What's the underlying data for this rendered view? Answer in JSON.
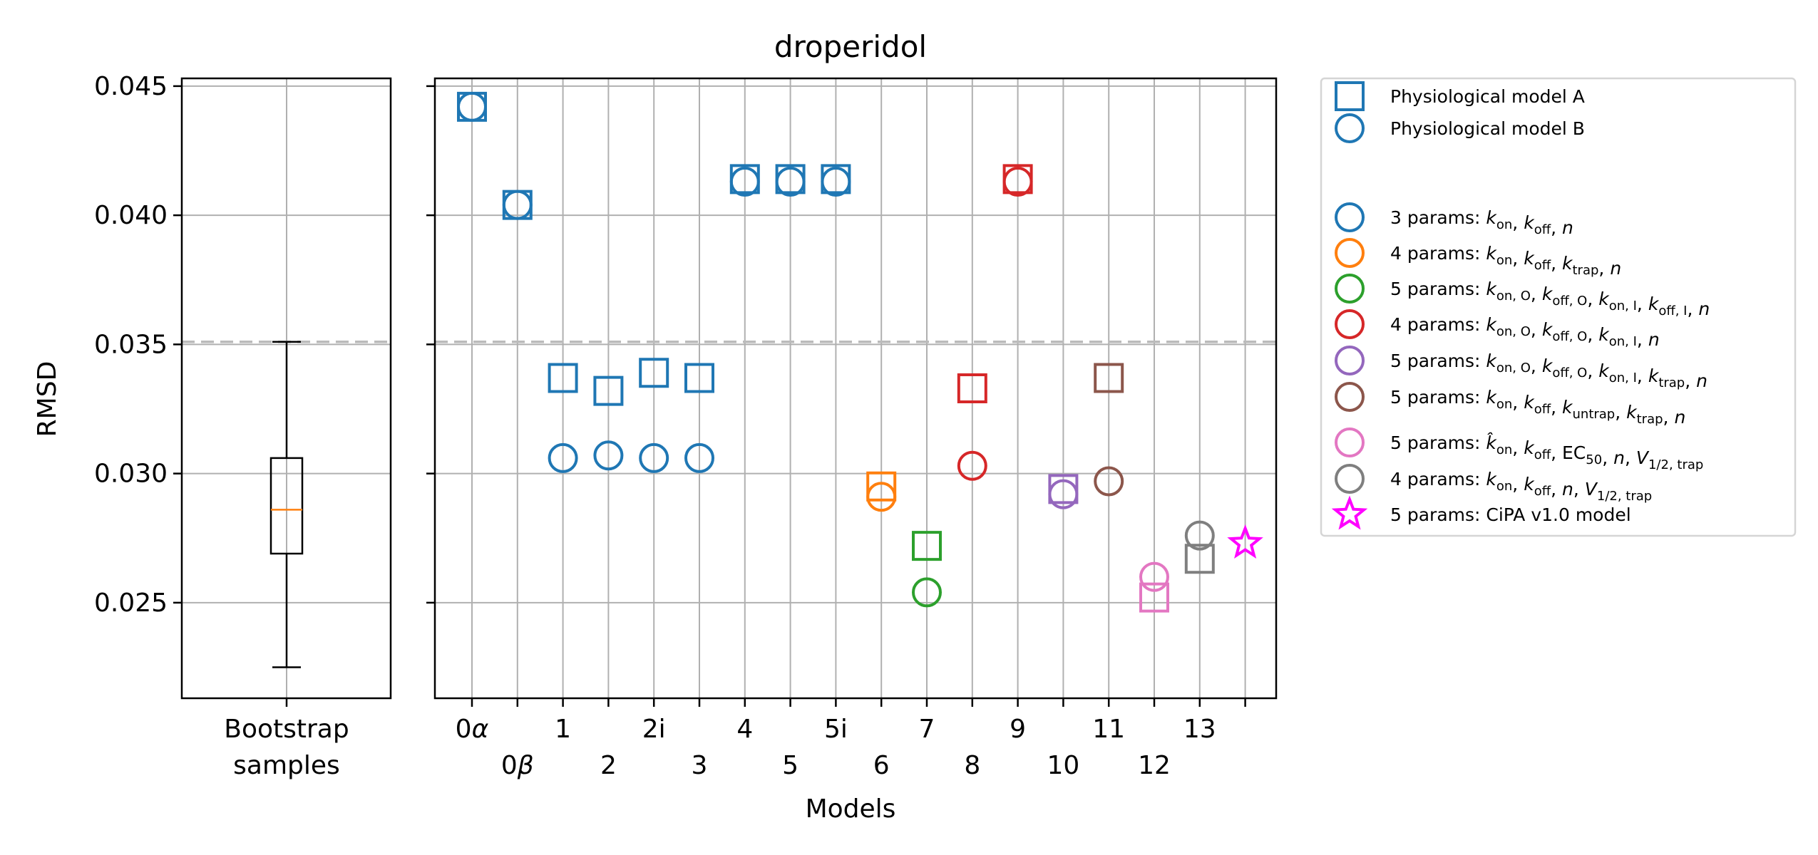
{
  "chart_data": {
    "title": "droperidol",
    "type": "scatter",
    "ylabel": "RMSD",
    "xlabel": "Models",
    "ylim": [
      0.0213,
      0.0453
    ],
    "yticks": [
      0.025,
      0.03,
      0.035,
      0.04,
      0.045
    ],
    "ytick_labels": [
      "0.025",
      "0.030",
      "0.035",
      "0.040",
      "0.045"
    ],
    "threshold": 0.0351,
    "grid": true,
    "legend_placement": "outside right",
    "bootstrap": {
      "label_line1": "Bootstrap",
      "label_line2": "samples",
      "whisker_low": 0.0225,
      "q1": 0.0269,
      "median": 0.0286,
      "q3": 0.0306,
      "whisker_high": 0.0351
    },
    "categories": [
      "0α",
      "0β",
      "1",
      "2",
      "2i",
      "3",
      "4",
      "5",
      "5i",
      "6",
      "7",
      "8",
      "9",
      "10",
      "11",
      "12",
      "13",
      "14"
    ],
    "tick_labels": [
      {
        "main": "0",
        "italic": "α",
        "row": 0
      },
      {
        "main": "0",
        "italic": "β",
        "row": 1
      },
      {
        "main": "1",
        "italic": "",
        "row": 0
      },
      {
        "main": "2",
        "italic": "",
        "row": 1
      },
      {
        "main": "2i",
        "italic": "",
        "row": 0
      },
      {
        "main": "3",
        "italic": "",
        "row": 1
      },
      {
        "main": "4",
        "italic": "",
        "row": 0
      },
      {
        "main": "5",
        "italic": "",
        "row": 1
      },
      {
        "main": "5i",
        "italic": "",
        "row": 0
      },
      {
        "main": "6",
        "italic": "",
        "row": 1
      },
      {
        "main": "7",
        "italic": "",
        "row": 0
      },
      {
        "main": "8",
        "italic": "",
        "row": 1
      },
      {
        "main": "9",
        "italic": "",
        "row": 0
      },
      {
        "main": "10",
        "italic": "",
        "row": 1
      },
      {
        "main": "11",
        "italic": "",
        "row": 0
      },
      {
        "main": "12",
        "italic": "",
        "row": 1
      },
      {
        "main": "13",
        "italic": "",
        "row": 0
      },
      {
        "main": "",
        "italic": "",
        "row": 1
      }
    ],
    "colors": {
      "blue": "#1f77b4",
      "orange": "#ff7f0e",
      "green": "#2ca02c",
      "red": "#d62728",
      "purple": "#9467bd",
      "brown": "#8c564b",
      "pink": "#e377c2",
      "gray": "#7f7f7f",
      "magenta": "#ff00ff",
      "median": "#ff7f0e",
      "threshold": "#bbbbbb"
    },
    "points": [
      {
        "x": "0α",
        "model_a": 0.0442,
        "model_b": 0.0442,
        "color": "blue"
      },
      {
        "x": "0β",
        "model_a": 0.0404,
        "model_b": 0.0404,
        "color": "blue"
      },
      {
        "x": "1",
        "model_a": 0.0337,
        "model_b": 0.0306,
        "color": "blue"
      },
      {
        "x": "2",
        "model_a": 0.0332,
        "model_b": 0.0307,
        "color": "blue"
      },
      {
        "x": "2i",
        "model_a": 0.0339,
        "model_b": 0.0306,
        "color": "blue"
      },
      {
        "x": "3",
        "model_a": 0.0337,
        "model_b": 0.0306,
        "color": "blue"
      },
      {
        "x": "4",
        "model_a": 0.0414,
        "model_b": 0.0413,
        "color": "blue"
      },
      {
        "x": "5",
        "model_a": 0.0414,
        "model_b": 0.0413,
        "color": "blue"
      },
      {
        "x": "5i",
        "model_a": 0.0414,
        "model_b": 0.0413,
        "color": "blue"
      },
      {
        "x": "6",
        "model_a": 0.0295,
        "model_b": 0.0291,
        "color": "orange"
      },
      {
        "x": "7",
        "model_a": 0.0272,
        "model_b": 0.0254,
        "color": "green"
      },
      {
        "x": "8",
        "model_a": 0.0333,
        "model_b": 0.0303,
        "color": "red"
      },
      {
        "x": "9",
        "model_a": 0.0414,
        "model_b": 0.0413,
        "color": "red"
      },
      {
        "x": "10",
        "model_a": 0.0294,
        "model_b": 0.0292,
        "color": "purple"
      },
      {
        "x": "11",
        "model_a": 0.0337,
        "model_b": 0.0297,
        "color": "brown"
      },
      {
        "x": "12",
        "model_a": 0.0252,
        "model_b": 0.026,
        "color": "pink"
      },
      {
        "x": "13",
        "model_a": 0.0267,
        "model_b": 0.0276,
        "color": "gray"
      },
      {
        "x": "14",
        "cipa": 0.0273,
        "color": "magenta"
      }
    ],
    "legend": [
      {
        "marker": "square",
        "color": "blue",
        "text": "Physiological model A"
      },
      {
        "marker": "circle",
        "color": "blue",
        "text": "Physiological model B"
      },
      {
        "marker": "circle",
        "color": "blue",
        "parts": [
          [
            "3 params: ",
            ""
          ],
          [
            "k",
            "i",
            "on",
            ""
          ],
          [
            ", ",
            ""
          ],
          [
            "k",
            "i",
            "off",
            ""
          ],
          [
            ", ",
            ""
          ],
          [
            "n",
            "i"
          ]
        ]
      },
      {
        "marker": "circle",
        "color": "orange",
        "parts": [
          [
            "4 params: ",
            ""
          ],
          [
            "k",
            "i",
            "on",
            ""
          ],
          [
            ", ",
            ""
          ],
          [
            "k",
            "i",
            "off",
            ""
          ],
          [
            ", ",
            ""
          ],
          [
            "k",
            "i",
            "trap",
            ""
          ],
          [
            ", ",
            ""
          ],
          [
            "n",
            "i"
          ]
        ]
      },
      {
        "marker": "circle",
        "color": "green",
        "parts": [
          [
            "5 params: ",
            ""
          ],
          [
            "k",
            "i",
            "on, O",
            ""
          ],
          [
            ", ",
            ""
          ],
          [
            "k",
            "i",
            "off, O",
            ""
          ],
          [
            ", ",
            ""
          ],
          [
            "k",
            "i",
            "on, I",
            ""
          ],
          [
            ", ",
            ""
          ],
          [
            "k",
            "i",
            "off, I",
            ""
          ],
          [
            ", ",
            ""
          ],
          [
            "n",
            "i"
          ]
        ]
      },
      {
        "marker": "circle",
        "color": "red",
        "parts": [
          [
            "4 params: ",
            ""
          ],
          [
            "k",
            "i",
            "on, O",
            ""
          ],
          [
            ", ",
            ""
          ],
          [
            "k",
            "i",
            "off, O",
            ""
          ],
          [
            ", ",
            ""
          ],
          [
            "k",
            "i",
            "on, I",
            ""
          ],
          [
            ", ",
            ""
          ],
          [
            "n",
            "i"
          ]
        ]
      },
      {
        "marker": "circle",
        "color": "purple",
        "parts": [
          [
            "5 params: ",
            ""
          ],
          [
            "k",
            "i",
            "on, O",
            ""
          ],
          [
            ", ",
            ""
          ],
          [
            "k",
            "i",
            "off, O",
            ""
          ],
          [
            ", ",
            ""
          ],
          [
            "k",
            "i",
            "on, I",
            ""
          ],
          [
            ", ",
            ""
          ],
          [
            "k",
            "i",
            "trap",
            ""
          ],
          [
            ", ",
            ""
          ],
          [
            "n",
            "i"
          ]
        ]
      },
      {
        "marker": "circle",
        "color": "brown",
        "parts": [
          [
            "5 params: ",
            ""
          ],
          [
            "k",
            "i",
            "on",
            ""
          ],
          [
            ", ",
            ""
          ],
          [
            "k",
            "i",
            "off",
            ""
          ],
          [
            ", ",
            ""
          ],
          [
            "k",
            "i",
            "untrap",
            ""
          ],
          [
            ", ",
            ""
          ],
          [
            "k",
            "i",
            "trap",
            ""
          ],
          [
            ", ",
            ""
          ],
          [
            "n",
            "i"
          ]
        ]
      },
      {
        "marker": "circle",
        "color": "pink",
        "parts": [
          [
            "5 params: ",
            ""
          ],
          [
            "k̂",
            "i",
            "on",
            ""
          ],
          [
            ", ",
            ""
          ],
          [
            "k",
            "i",
            "off",
            ""
          ],
          [
            ", ",
            ""
          ],
          [
            "EC",
            "",
            "50",
            ""
          ],
          [
            ", ",
            ""
          ],
          [
            "n",
            "i"
          ],
          [
            ", ",
            ""
          ],
          [
            "V",
            "i",
            "1/2, trap",
            ""
          ]
        ]
      },
      {
        "marker": "circle",
        "color": "gray",
        "parts": [
          [
            "4 params: ",
            ""
          ],
          [
            "k",
            "i",
            "on",
            ""
          ],
          [
            ", ",
            ""
          ],
          [
            "k",
            "i",
            "off",
            ""
          ],
          [
            ", ",
            ""
          ],
          [
            "n",
            "i"
          ],
          [
            ", ",
            ""
          ],
          [
            "V",
            "i",
            "1/2, trap",
            ""
          ]
        ]
      },
      {
        "marker": "star",
        "color": "magenta",
        "text": "5 params: CiPA v1.0 model"
      }
    ]
  }
}
